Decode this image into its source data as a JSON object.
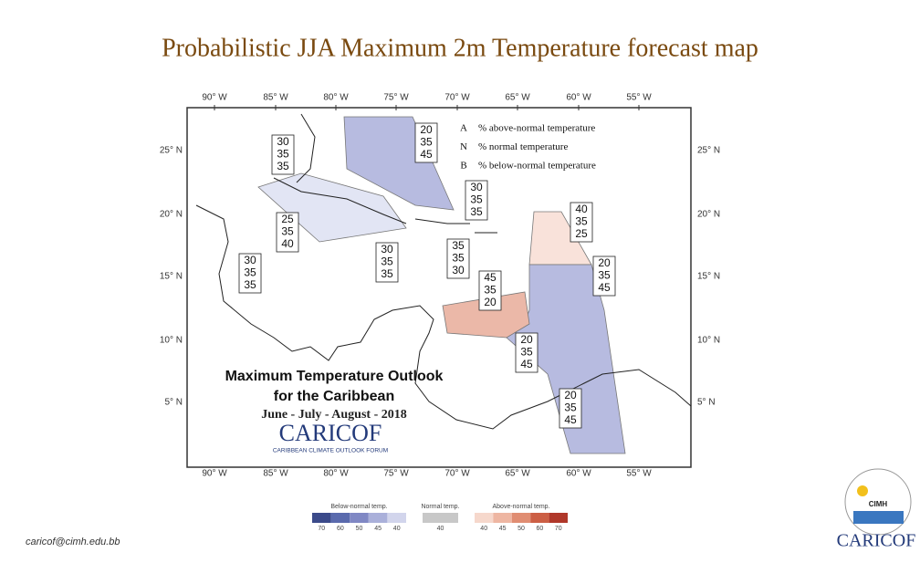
{
  "title": "Probabilistic JJA Maximum 2m Temperature forecast map",
  "map": {
    "lon_labels": [
      "90° W",
      "85° W",
      "80° W",
      "75° W",
      "70° W",
      "65° W",
      "60° W",
      "55° W"
    ],
    "lat_labels": [
      "25° N",
      "20° N",
      "15° N",
      "10° N",
      "5° N"
    ],
    "outlook_boxes": [
      {
        "values": [
          30,
          35,
          35
        ]
      },
      {
        "values": [
          20,
          35,
          45
        ]
      },
      {
        "values": [
          30,
          35,
          35
        ]
      },
      {
        "values": [
          25,
          35,
          40
        ]
      },
      {
        "values": [
          40,
          35,
          25
        ]
      },
      {
        "values": [
          30,
          35,
          35
        ]
      },
      {
        "values": [
          30,
          35,
          35
        ]
      },
      {
        "values": [
          35,
          35,
          30
        ]
      },
      {
        "values": [
          45,
          35,
          20
        ]
      },
      {
        "values": [
          20,
          35,
          45
        ]
      },
      {
        "values": [
          20,
          35,
          45
        ]
      },
      {
        "values": [
          20,
          35,
          45
        ]
      }
    ],
    "legend": [
      {
        "key": "A",
        "text": "% above-normal temperature"
      },
      {
        "key": "N",
        "text": "% normal temperature"
      },
      {
        "key": "B",
        "text": "% below-normal temperature"
      }
    ],
    "caption": {
      "line1": "Maximum Temperature Outlook",
      "line2": "for the Caribbean",
      "season": "June - July - August - 2018",
      "brand": "CARICOF",
      "brand_sub": "CARIBBEAN CLIMATE OUTLOOK FORUM"
    }
  },
  "colorbar": {
    "groups": [
      {
        "title": "Below-normal temp.",
        "ticks": [
          70,
          60,
          50,
          45,
          40
        ]
      },
      {
        "title": "Normal temp.",
        "ticks": [
          40
        ]
      },
      {
        "title": "Above-normal temp.",
        "ticks": [
          40,
          45,
          50,
          60,
          70
        ]
      }
    ]
  },
  "footer": {
    "email": "caricof@cimh.edu.bb"
  },
  "logo": {
    "cimh": "CIMH",
    "name": "CARICOF"
  }
}
